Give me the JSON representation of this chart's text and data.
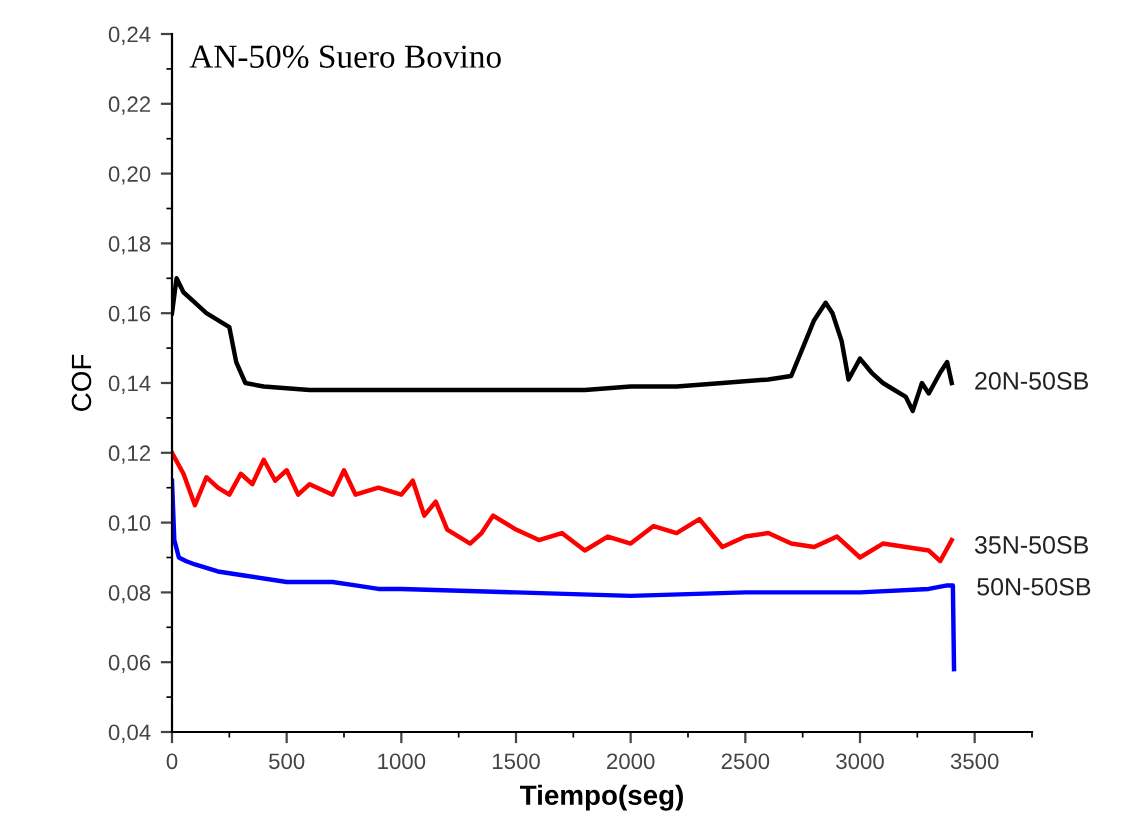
{
  "chart_data": {
    "type": "line",
    "title": "AN-50% Suero Bovino",
    "xlabel": "Tiempo(seg)",
    "ylabel": "COF",
    "xlim": [
      0,
      3750
    ],
    "ylim": [
      0.04,
      0.24
    ],
    "xticks": [
      0,
      500,
      1000,
      1500,
      2000,
      2500,
      3000,
      3500
    ],
    "yticks": [
      {
        "value": 0.04,
        "label": "0,04"
      },
      {
        "value": 0.06,
        "label": "0,06"
      },
      {
        "value": 0.08,
        "label": "0,08"
      },
      {
        "value": 0.1,
        "label": "0,10"
      },
      {
        "value": 0.12,
        "label": "0,12"
      },
      {
        "value": 0.14,
        "label": "0,14"
      },
      {
        "value": 0.16,
        "label": "0,16"
      },
      {
        "value": 0.18,
        "label": "0,18"
      },
      {
        "value": 0.2,
        "label": "0,20"
      },
      {
        "value": 0.22,
        "label": "0,22"
      },
      {
        "value": 0.24,
        "label": "0,24"
      }
    ],
    "grid": false,
    "legend": false,
    "marker": "none",
    "line_style": "solid",
    "series": [
      {
        "name": "20N-50SB",
        "color": "#000000",
        "x": [
          0,
          20,
          50,
          100,
          150,
          200,
          250,
          280,
          320,
          400,
          600,
          800,
          1000,
          1200,
          1400,
          1600,
          1800,
          2000,
          2200,
          2400,
          2600,
          2700,
          2750,
          2800,
          2850,
          2880,
          2920,
          2950,
          3000,
          3050,
          3100,
          3150,
          3200,
          3230,
          3270,
          3300,
          3350,
          3380,
          3400
        ],
        "values": [
          0.16,
          0.17,
          0.166,
          0.163,
          0.16,
          0.158,
          0.156,
          0.146,
          0.14,
          0.139,
          0.138,
          0.138,
          0.138,
          0.138,
          0.138,
          0.138,
          0.138,
          0.139,
          0.139,
          0.14,
          0.141,
          0.142,
          0.15,
          0.158,
          0.163,
          0.16,
          0.152,
          0.141,
          0.147,
          0.143,
          0.14,
          0.138,
          0.136,
          0.132,
          0.14,
          0.137,
          0.143,
          0.146,
          0.14
        ]
      },
      {
        "name": "35N-50SB",
        "color": "#ff0000",
        "x": [
          0,
          50,
          100,
          150,
          200,
          250,
          300,
          350,
          400,
          450,
          500,
          550,
          600,
          700,
          750,
          800,
          900,
          1000,
          1050,
          1100,
          1150,
          1200,
          1300,
          1350,
          1400,
          1500,
          1600,
          1700,
          1800,
          1900,
          2000,
          2100,
          2200,
          2300,
          2400,
          2500,
          2600,
          2700,
          2800,
          2900,
          3000,
          3100,
          3200,
          3300,
          3350,
          3400
        ],
        "values": [
          0.12,
          0.114,
          0.105,
          0.113,
          0.11,
          0.108,
          0.114,
          0.111,
          0.118,
          0.112,
          0.115,
          0.108,
          0.111,
          0.108,
          0.115,
          0.108,
          0.11,
          0.108,
          0.112,
          0.102,
          0.106,
          0.098,
          0.094,
          0.097,
          0.102,
          0.098,
          0.095,
          0.097,
          0.092,
          0.096,
          0.094,
          0.099,
          0.097,
          0.101,
          0.093,
          0.096,
          0.097,
          0.094,
          0.093,
          0.096,
          0.09,
          0.094,
          0.093,
          0.092,
          0.089,
          0.095
        ]
      },
      {
        "name": "50N-50SB",
        "color": "#0000ff",
        "x": [
          0,
          10,
          30,
          60,
          100,
          200,
          300,
          500,
          700,
          800,
          900,
          1000,
          1500,
          2000,
          2500,
          3000,
          3300,
          3380,
          3405,
          3410
        ],
        "values": [
          0.112,
          0.095,
          0.09,
          0.089,
          0.088,
          0.086,
          0.085,
          0.083,
          0.083,
          0.082,
          0.081,
          0.081,
          0.08,
          0.079,
          0.08,
          0.08,
          0.081,
          0.082,
          0.082,
          0.058
        ]
      }
    ]
  }
}
